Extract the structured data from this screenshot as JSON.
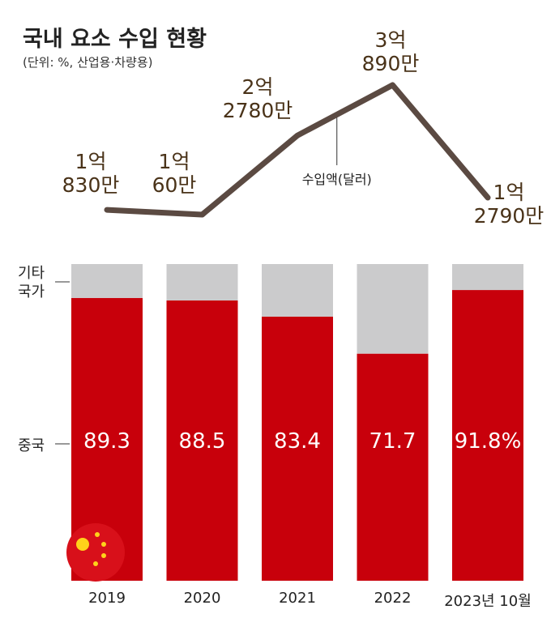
{
  "title": "국내 요소 수입 현황",
  "subtitle": "(단위: %, 산업용·차량용)",
  "chart_data": [
    {
      "type": "line",
      "series": [
        {
          "name": "수입액(달러)",
          "color": "#5b4a42",
          "values": [
            108300000,
            100600000,
            227800000,
            308900000,
            127900000
          ],
          "value_labels": [
            "1억\n830만",
            "1억\n60만",
            "2억\n2780만",
            "3억\n890만",
            "1억\n2790만"
          ]
        }
      ]
    },
    {
      "type": "stacked-bar",
      "categories": [
        "2019",
        "2020",
        "2021",
        "2022",
        "2023년 10월"
      ],
      "ylim": [
        0,
        100
      ],
      "series": [
        {
          "name": "중국",
          "color": "#c8000b",
          "values": [
            89.3,
            88.5,
            83.4,
            71.7,
            91.8
          ],
          "value_labels": [
            "89.3",
            "88.5",
            "83.4",
            "71.7",
            "91.8%"
          ]
        },
        {
          "name": "기타\n국가",
          "color": "#cbcbcc",
          "values": [
            10.7,
            11.5,
            16.6,
            28.3,
            8.2
          ]
        }
      ]
    }
  ]
}
